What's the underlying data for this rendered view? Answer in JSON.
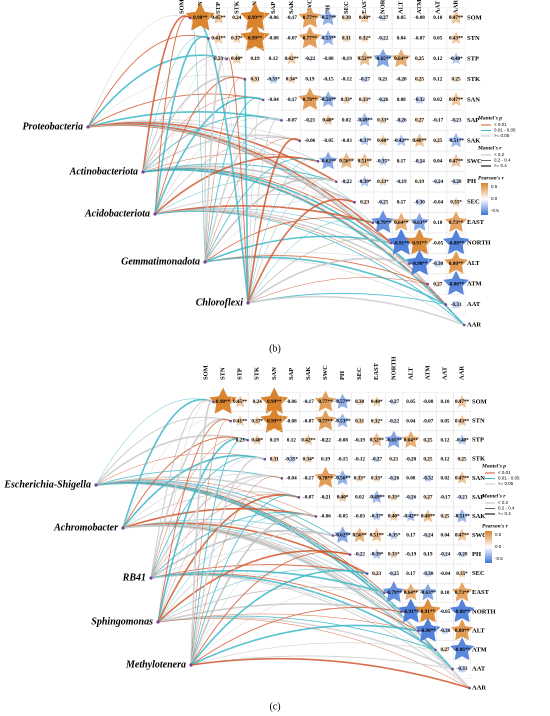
{
  "panels": [
    {
      "label": "(b)",
      "taxa": [
        "Proteobacteria",
        "Actinobacteriota",
        "Acidobacteriota",
        "Gemmatimonadota",
        "Chloroflexi"
      ],
      "columns": [
        "SOM",
        "STN",
        "STP",
        "STK",
        "SAN",
        "SAP",
        "SAK",
        "SWC",
        "PH",
        "SEC",
        "EAST",
        "NORTH",
        "ALT",
        "ATM",
        "AAT",
        "AAR"
      ],
      "rows": [
        {
          "name": "SOM",
          "cells": [
            "0.98**",
            "0.45**",
            "0.24",
            "0.99**",
            "-0.06",
            "-0.17",
            "0.77**",
            "-0.57**",
            "0.30",
            "0.40*",
            "-0.27",
            "0.05",
            "-0.08",
            "0.10",
            "0.47**"
          ]
        },
        {
          "name": "STN",
          "cells": [
            "0.41**",
            "0.37*",
            "0.99**",
            "-0.08",
            "-0.07",
            "0.77**",
            "-0.53**",
            "0.31",
            "0.32*",
            "-0.22",
            "0.04",
            "-0.07",
            "0.05",
            "0.43**"
          ]
        },
        {
          "name": "STP",
          "cells": [
            "0.23",
            "0.40*",
            "0.19",
            "0.12",
            "0.42**",
            "-0.22",
            "-0.08",
            "-0.19",
            "0.52**",
            "-0.65**",
            "0.64**",
            "0.25",
            "0.12",
            "-0.40*"
          ]
        },
        {
          "name": "STK",
          "cells": [
            "0.31",
            "-0.35*",
            "0.34*",
            "0.19",
            "-0.15",
            "-0.12",
            "-0.27",
            "0.21",
            "-0.20",
            "0.25",
            "0.12",
            "0.25"
          ]
        },
        {
          "name": "SAN",
          "cells": [
            "-0.04",
            "-0.17",
            "0.78**",
            "-0.56**",
            "0.33*",
            "0.33*",
            "-0.26",
            "0.08",
            "-0.32",
            "0.02",
            "0.47**"
          ]
        },
        {
          "name": "SAP",
          "cells": [
            "-0.07",
            "-0.21",
            "0.40*",
            "0.02",
            "-0.49**",
            "0.33*",
            "-0.26",
            "0.27",
            "-0.17",
            "-0.23"
          ]
        },
        {
          "name": "SAK",
          "cells": [
            "-0.06",
            "-0.05",
            "-0.03",
            "-0.37*",
            "0.40*",
            "-0.42**",
            "0.48**",
            "0.25",
            "-0.51**"
          ]
        },
        {
          "name": "SWC",
          "cells": [
            "-0.62**",
            "0.56**",
            "0.51**",
            "-0.35*",
            "0.17",
            "-0.24",
            "0.04",
            "0.47**"
          ]
        },
        {
          "name": "PH",
          "cells": [
            "-0.22",
            "-0.39*",
            "0.33*",
            "-0.19",
            "0.19",
            "-0.24",
            "-0.28"
          ]
        },
        {
          "name": "SEC",
          "cells": [
            "0.23",
            "-0.25",
            "0.17",
            "-0.30",
            "-0.04",
            "0.35*"
          ]
        },
        {
          "name": "EAST",
          "cells": [
            "-0.79**",
            "0.64**",
            "-0.63**",
            "0.10",
            "0.73**"
          ]
        },
        {
          "name": "NORTH",
          "cells": [
            "-0.91**",
            "0.91**",
            "-0.05",
            "-0.88**"
          ]
        },
        {
          "name": "ALT",
          "cells": [
            "-0.90**",
            "-0.30",
            "0.80**"
          ]
        },
        {
          "name": "ATM",
          "cells": [
            "0.27",
            "-0.86**"
          ]
        },
        {
          "name": "AAT",
          "cells": [
            "-0.33"
          ]
        },
        {
          "name": "AAR",
          "cells": []
        }
      ],
      "legend": {
        "mantel_p_title": "Mantel's p",
        "mantel_p": [
          "< 0.01",
          "0.01 - 0.05",
          ">= 0.05"
        ],
        "mantel_r_title": "Mantel's r",
        "mantel_r": [
          "< 0.2",
          "0.2 - 0.4",
          ">= 0.4"
        ],
        "pearson_title": "Pearson's r",
        "pearson_ticks": [
          "0.5",
          "0.0",
          "-0.5"
        ]
      }
    },
    {
      "label": "(c)",
      "taxa": [
        "Escherichia-Shigella",
        "Achromobacter",
        "RB41",
        "Sphingomonas",
        "Methylotenera"
      ],
      "columns": [
        "SOM",
        "STN",
        "STP",
        "STK",
        "SAN",
        "SAP",
        "SAK",
        "SWC",
        "PH",
        "SEC",
        "EAST",
        "NORTH",
        "ALT",
        "ATM",
        "AAT",
        "AAR"
      ],
      "rows": [
        {
          "name": "SOM",
          "cells": [
            "0.98**",
            "0.45**",
            "0.24",
            "0.99**",
            "-0.06",
            "-0.17",
            "0.77**",
            "-0.57**",
            "0.30",
            "0.40*",
            "-0.27",
            "0.05",
            "-0.08",
            "0.10",
            "0.47**"
          ]
        },
        {
          "name": "STN",
          "cells": [
            "0.41**",
            "0.37*",
            "0.99**",
            "-0.08",
            "-0.07",
            "0.77**",
            "-0.53**",
            "0.31",
            "0.32*",
            "-0.22",
            "0.04",
            "-0.07",
            "0.05",
            "0.43**"
          ]
        },
        {
          "name": "STP",
          "cells": [
            "0.23",
            "0.40*",
            "0.19",
            "0.12",
            "0.42**",
            "-0.22",
            "-0.08",
            "-0.19",
            "0.52**",
            "-0.65**",
            "0.64**",
            "0.25",
            "0.12",
            "-0.40*"
          ]
        },
        {
          "name": "STK",
          "cells": [
            "0.31",
            "-0.35*",
            "0.34*",
            "0.19",
            "-0.15",
            "-0.12",
            "-0.27",
            "0.21",
            "-0.20",
            "0.25",
            "0.12",
            "0.25"
          ]
        },
        {
          "name": "SAN",
          "cells": [
            "-0.04",
            "-0.17",
            "0.78**",
            "-0.56**",
            "0.33*",
            "0.33*",
            "-0.26",
            "0.08",
            "-0.32",
            "0.02",
            "0.47**"
          ]
        },
        {
          "name": "SAP",
          "cells": [
            "-0.07",
            "-0.21",
            "0.40*",
            "0.02",
            "-0.49**",
            "0.33*",
            "-0.26",
            "0.27",
            "-0.17",
            "-0.23"
          ]
        },
        {
          "name": "SAK",
          "cells": [
            "-0.06",
            "-0.05",
            "-0.03",
            "-0.37*",
            "0.40*",
            "-0.42**",
            "0.48**",
            "0.25",
            "-0.51**"
          ]
        },
        {
          "name": "SWC",
          "cells": [
            "-0.62**",
            "0.56**",
            "0.51**",
            "-0.35*",
            "0.17",
            "-0.24",
            "0.04",
            "0.47**"
          ]
        },
        {
          "name": "PH",
          "cells": [
            "-0.22",
            "-0.39*",
            "0.33*",
            "-0.19",
            "0.19",
            "-0.24",
            "-0.28"
          ]
        },
        {
          "name": "SEC",
          "cells": [
            "0.23",
            "-0.25",
            "0.17",
            "-0.30",
            "-0.04",
            "0.35*"
          ]
        },
        {
          "name": "EAST",
          "cells": [
            "-0.79**",
            "0.64**",
            "-0.63**",
            "0.10",
            "0.73**"
          ]
        },
        {
          "name": "NORTH",
          "cells": [
            "-0.91**",
            "0.91**",
            "-0.05",
            "-0.88**"
          ]
        },
        {
          "name": "ALT",
          "cells": [
            "-0.90**",
            "-0.30",
            "0.80**"
          ]
        },
        {
          "name": "ATM",
          "cells": [
            "0.27",
            "-0.86**"
          ]
        },
        {
          "name": "AAT",
          "cells": [
            "-0.33"
          ]
        },
        {
          "name": "AAR",
          "cells": []
        }
      ],
      "legend": {
        "mantel_p_title": "Mantel's p",
        "mantel_p": [
          "< 0.01",
          "0.01 - 0.05",
          ">= 0.05"
        ],
        "mantel_r_title": "Mantel's r",
        "mantel_r": [
          "< 0.2",
          "0.2 - 0.4",
          ">= 0.4"
        ],
        "pearson_title": "Pearson's r",
        "pearson_ticks": [
          "0.5",
          "0.0",
          "-0.5"
        ]
      }
    }
  ]
}
